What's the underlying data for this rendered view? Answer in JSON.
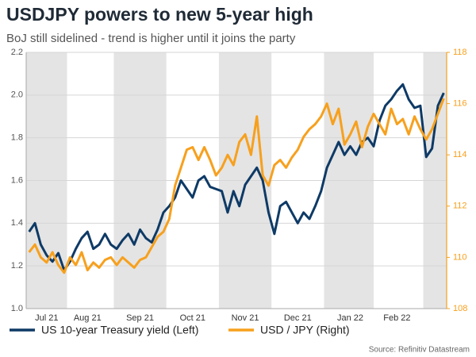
{
  "chart_data": {
    "type": "line",
    "title": "USDJPY powers to new 5-year high",
    "subtitle": "BoJ still sidelined - trend is higher until it joins the party",
    "source": "Source: Refinitiv Datastream",
    "categories": [
      null,
      null,
      null,
      "Jul 21",
      null,
      null,
      null,
      null,
      null,
      null,
      "Aug 21",
      null,
      null,
      null,
      null,
      null,
      null,
      null,
      null,
      "Sep 21",
      null,
      null,
      null,
      null,
      null,
      null,
      null,
      null,
      "Oct 21",
      null,
      null,
      null,
      null,
      null,
      null,
      null,
      null,
      "Nov 21",
      null,
      null,
      null,
      null,
      null,
      null,
      null,
      null,
      "Dec 21",
      null,
      null,
      null,
      null,
      null,
      null,
      null,
      null,
      "Jan 22",
      null,
      null,
      null,
      null,
      null,
      null,
      null,
      "Feb 22",
      null,
      null,
      null,
      null,
      null,
      null,
      null,
      null
    ],
    "series": [
      {
        "name": "US 10-year Treasury yield (Left)",
        "color": "#0e3a66",
        "axis": "y",
        "values": [
          1.36,
          1.4,
          1.3,
          1.25,
          1.22,
          1.26,
          1.18,
          1.22,
          1.28,
          1.33,
          1.36,
          1.28,
          1.3,
          1.35,
          1.3,
          1.28,
          1.32,
          1.35,
          1.3,
          1.37,
          1.33,
          1.31,
          1.37,
          1.45,
          1.48,
          1.52,
          1.6,
          1.56,
          1.52,
          1.6,
          1.62,
          1.57,
          1.56,
          1.55,
          1.45,
          1.55,
          1.48,
          1.58,
          1.62,
          1.66,
          1.6,
          1.45,
          1.35,
          1.48,
          1.5,
          1.45,
          1.4,
          1.45,
          1.42,
          1.48,
          1.55,
          1.66,
          1.72,
          1.78,
          1.72,
          1.76,
          1.72,
          1.78,
          1.8,
          1.76,
          1.88,
          1.95,
          1.98,
          2.02,
          2.05,
          1.98,
          1.94,
          1.95,
          1.71,
          1.75,
          1.95,
          2.01
        ]
      },
      {
        "name": "USD / JPY (Right)",
        "color": "#f7a01d",
        "axis": "y2",
        "values": [
          110.2,
          110.5,
          110.0,
          109.8,
          110.2,
          109.7,
          109.4,
          110.0,
          109.7,
          110.2,
          109.5,
          109.8,
          109.6,
          109.9,
          110.0,
          109.7,
          110.0,
          109.8,
          109.6,
          109.9,
          110.0,
          110.4,
          110.8,
          111.0,
          111.5,
          112.8,
          113.5,
          114.2,
          114.3,
          113.8,
          114.3,
          113.8,
          113.2,
          113.5,
          114.0,
          113.6,
          114.5,
          114.8,
          114.0,
          115.5,
          113.2,
          112.8,
          113.6,
          113.8,
          113.5,
          113.9,
          114.2,
          114.7,
          115.0,
          115.2,
          115.5,
          116.0,
          115.2,
          115.8,
          114.4,
          114.8,
          115.3,
          114.3,
          115.1,
          115.6,
          115.2,
          114.8,
          115.8,
          115.2,
          115.4,
          114.8,
          115.5,
          115.0,
          114.6,
          115.0,
          115.6,
          116.2
        ]
      }
    ],
    "ylim": [
      1.0,
      2.2
    ],
    "yticks": [
      {
        "value": 1,
        "label": "1.0"
      },
      1.2,
      1.4,
      1.6,
      1.8,
      {
        "value": 2,
        "label": "2.0"
      },
      2.2
    ],
    "y2lim": [
      108,
      118
    ],
    "y2ticks": [
      108,
      110,
      112,
      114,
      116,
      118
    ],
    "grid": true,
    "legend": "bottom"
  }
}
